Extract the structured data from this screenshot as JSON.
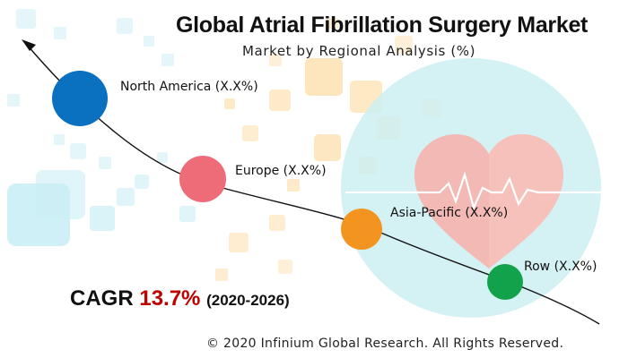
{
  "header": {
    "title": "Global Atrial Fibrillation Surgery Market",
    "subtitle": "Market by Regional Analysis (%)"
  },
  "regions": [
    {
      "label": "North America (X.X%)",
      "color": "#0a70c0"
    },
    {
      "label": "Europe (X.X%)",
      "color": "#ee6b78"
    },
    {
      "label": "Asia-Pacific (X.X%)",
      "color": "#f39420"
    },
    {
      "label": "Row (X.X%)",
      "color": "#13a24c"
    }
  ],
  "cagr": {
    "prefix": "CAGR",
    "value": "13.7%",
    "range": "(2020-2026)",
    "value_color": "#c00000"
  },
  "footer": {
    "copyright": "© 2020 Infinium Global Research. All Rights Reserved."
  },
  "icons": [
    "heart-icon",
    "heartbeat-line-icon",
    "arrow-up-left-icon"
  ]
}
